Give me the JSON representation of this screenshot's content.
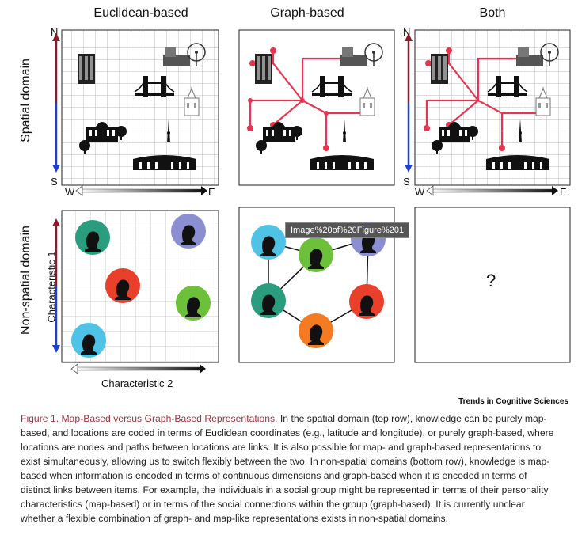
{
  "columns": [
    "Euclidean-based",
    "Graph-based",
    "Both"
  ],
  "rows": [
    "Spatial domain",
    "Non-spatial domain"
  ],
  "compass": {
    "north": "N",
    "south": "S",
    "west": "W",
    "east": "E"
  },
  "axes": {
    "x_label": "Characteristic 2",
    "y_label": "Characteristic 1"
  },
  "tooltip": "Image%20of%20Figure%201",
  "unknown_mark": "?",
  "brand": "Trends in Cognitive Sciences",
  "caption": {
    "title": "Figure 1. Map-Based versus Graph-Based Representations.",
    "body": "In the spatial domain (top row), knowledge can be purely map-based, and locations are coded in terms of Euclidean coordinates (e.g., latitude and longitude), or purely graph-based, where locations are nodes and paths between locations are links. It is also possible for map- and graph-based representations to exist simultaneously, allowing us to switch flexibly between the two. In non-spatial domains (bottom row), knowledge is map-based when information is encoded in terms of continuous dimensions and graph-based when it is encoded in terms of distinct links between items. For example, the individuals in a social group might be represented in terms of their personality characteristics (map-based) or in terms of the social connections within the group (graph-based). It is currently unclear whether a flexible combination of graph- and map-like representations exists in non-spatial domains."
  },
  "colors": {
    "route": "#e8344e",
    "north_arrow": "#8b1a2a",
    "south_arrow": "#1f3fd1",
    "person_teal": "#2a9d7f",
    "person_red": "#e8402a",
    "person_purple": "#8b8ed0",
    "person_green": "#6cc03a",
    "person_cyan": "#4fc3e6",
    "person_orange": "#f47b22",
    "caption_title": "#a3343f"
  }
}
